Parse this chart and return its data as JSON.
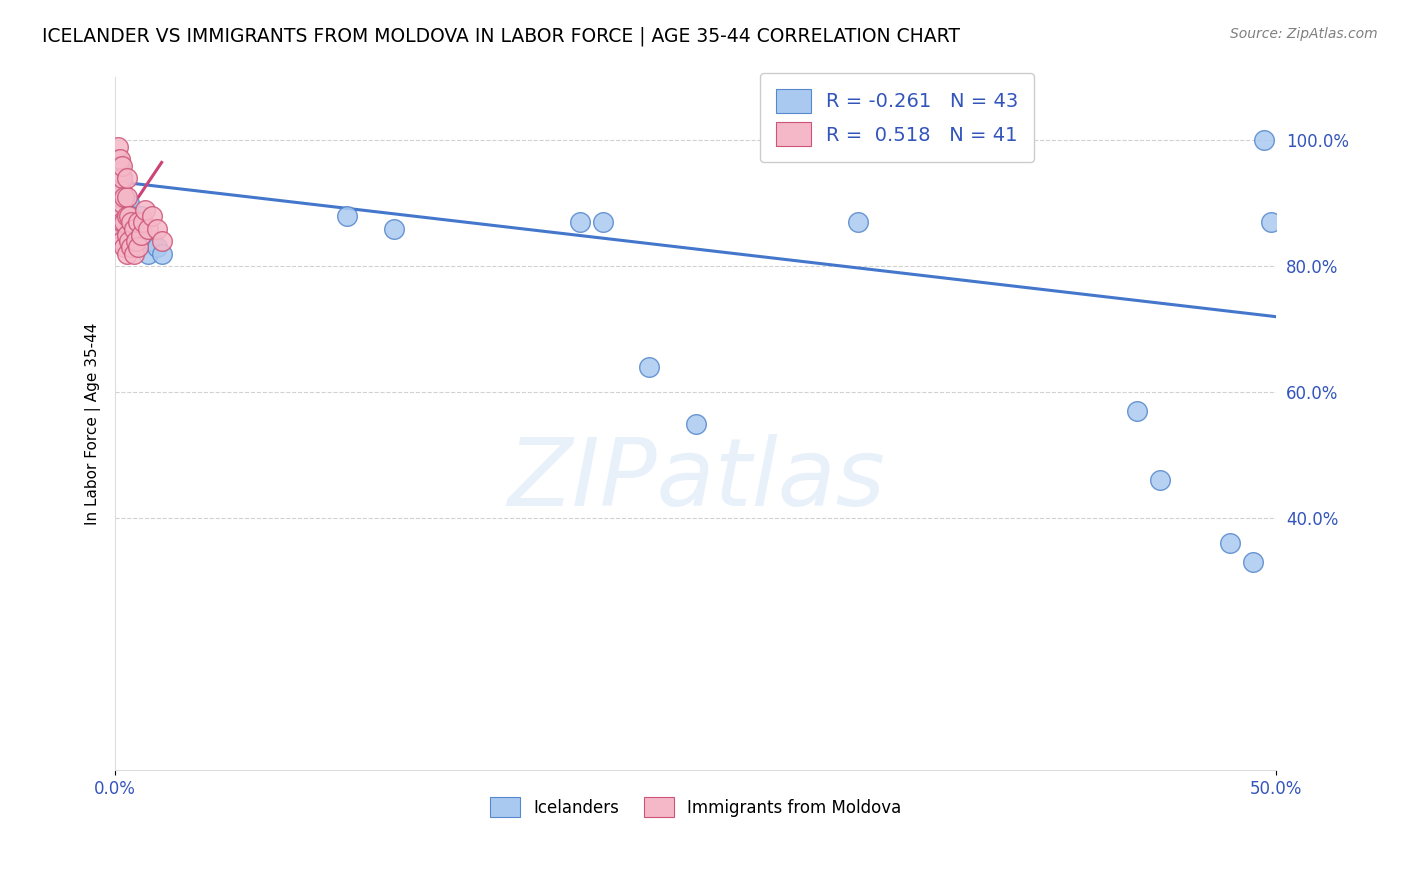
{
  "title": "ICELANDER VS IMMIGRANTS FROM MOLDOVA IN LABOR FORCE | AGE 35-44 CORRELATION CHART",
  "source": "Source: ZipAtlas.com",
  "ylabel": "In Labor Force | Age 35-44",
  "xlim": [
    0.0,
    0.5
  ],
  "ylim": [
    0.0,
    1.1
  ],
  "blue_R": -0.261,
  "blue_N": 43,
  "pink_R": 0.518,
  "pink_N": 41,
  "blue_scatter_x": [
    0.001,
    0.001,
    0.001,
    0.002,
    0.002,
    0.002,
    0.002,
    0.003,
    0.003,
    0.003,
    0.003,
    0.004,
    0.004,
    0.004,
    0.005,
    0.005,
    0.005,
    0.006,
    0.006,
    0.007,
    0.007,
    0.008,
    0.009,
    0.01,
    0.011,
    0.012,
    0.014,
    0.016,
    0.018,
    0.02,
    0.1,
    0.12,
    0.2,
    0.21,
    0.23,
    0.25,
    0.32,
    0.44,
    0.45,
    0.48,
    0.49,
    0.495,
    0.498
  ],
  "blue_scatter_y": [
    0.88,
    0.92,
    0.95,
    0.88,
    0.9,
    0.93,
    0.96,
    0.87,
    0.89,
    0.91,
    0.94,
    0.86,
    0.88,
    0.91,
    0.85,
    0.88,
    0.9,
    0.87,
    0.9,
    0.86,
    0.88,
    0.85,
    0.83,
    0.86,
    0.88,
    0.85,
    0.82,
    0.84,
    0.83,
    0.82,
    0.88,
    0.86,
    0.87,
    0.87,
    0.64,
    0.55,
    0.87,
    0.57,
    0.46,
    0.36,
    0.33,
    1.0,
    0.87
  ],
  "pink_scatter_x": [
    0.001,
    0.001,
    0.001,
    0.001,
    0.001,
    0.002,
    0.002,
    0.002,
    0.002,
    0.002,
    0.002,
    0.003,
    0.003,
    0.003,
    0.003,
    0.003,
    0.003,
    0.004,
    0.004,
    0.004,
    0.005,
    0.005,
    0.005,
    0.005,
    0.005,
    0.006,
    0.006,
    0.007,
    0.007,
    0.008,
    0.008,
    0.009,
    0.01,
    0.01,
    0.011,
    0.012,
    0.013,
    0.014,
    0.016,
    0.018,
    0.02
  ],
  "pink_scatter_y": [
    0.88,
    0.91,
    0.95,
    0.97,
    0.99,
    0.86,
    0.89,
    0.91,
    0.93,
    0.95,
    0.97,
    0.84,
    0.87,
    0.9,
    0.92,
    0.94,
    0.96,
    0.83,
    0.87,
    0.91,
    0.82,
    0.85,
    0.88,
    0.91,
    0.94,
    0.84,
    0.88,
    0.83,
    0.87,
    0.82,
    0.86,
    0.84,
    0.83,
    0.87,
    0.85,
    0.87,
    0.89,
    0.86,
    0.88,
    0.86,
    0.84
  ],
  "blue_line_x": [
    0.0,
    0.5
  ],
  "blue_line_y": [
    0.935,
    0.72
  ],
  "pink_line_x": [
    0.0,
    0.02
  ],
  "pink_line_y": [
    0.855,
    0.965
  ],
  "blue_color": "#aac9f0",
  "blue_edge_color": "#5588cc",
  "blue_line_color": "#4477cc",
  "pink_color": "#f5b8c8",
  "pink_edge_color": "#cc5577",
  "pink_line_color": "#cc4477",
  "background_color": "#ffffff",
  "grid_color": "#cccccc",
  "watermark": "ZIPatlas",
  "legend_label1": "Icelanders",
  "legend_label2": "Immigrants from Moldova",
  "legend_color": "#3355bb"
}
